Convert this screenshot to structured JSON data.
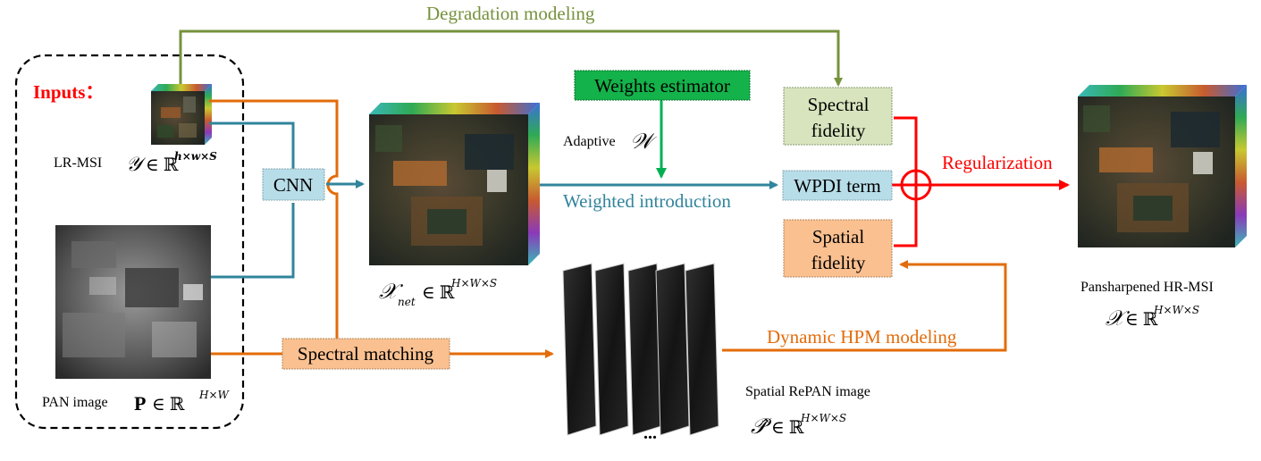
{
  "inputs_label": "Inputs：",
  "lrmsi": {
    "label": "LR-MSI",
    "symbol": "𝒴",
    "member": "∈ ℝ",
    "sup": "h×w×S"
  },
  "pan": {
    "label": "PAN image",
    "symbol": "P",
    "member": "∈ ℝ",
    "sup": "H×W"
  },
  "cnn_label": "CNN",
  "xnet": {
    "symbol": "𝒳",
    "sub": "net",
    "member": "∈ ℝ",
    "sup": "H×W×S"
  },
  "degradation_label": "Degradation modeling",
  "weights_estimator_label": "Weights estimator",
  "adaptive": {
    "label": "Adaptive",
    "symbol": "𝒲"
  },
  "weighted_introduction_label": "Weighted introduction",
  "spectral_fidelity": {
    "line1": "Spectral",
    "line2": "fidelity"
  },
  "wpdi_label": "WPDI term",
  "spatial_fidelity": {
    "line1": "Spatial",
    "line2": "fidelity"
  },
  "regularization_label": "Regularization",
  "spectral_matching_label": "Spectral matching",
  "dynamic_hpm_label": "Dynamic HPM modeling",
  "repan": {
    "label": "Spatial RePAN image",
    "symbol": "𝒫̂",
    "member": "∈ ℝ",
    "sup": "H×W×S",
    "ellipsis": "..."
  },
  "output": {
    "label": "Pansharpened HR-MSI",
    "symbol": "𝒳",
    "member": "∈ ℝ",
    "sup": "H×W×S"
  },
  "colors": {
    "green_arrow": "#76923c",
    "teal_arrow": "#31849b",
    "orange_arrow": "#e36c0a",
    "red_arrow": "#ff0000",
    "weights_box": "#14b24a",
    "weights_arrow": "#00b050",
    "cnn_box": "#b7dde8",
    "wpdi_box": "#b7dde8",
    "spectral_box": "#d7e4bd",
    "spatial_box": "#fac090",
    "matching_box": "#fac090",
    "inputs_text": "#ff0000"
  }
}
